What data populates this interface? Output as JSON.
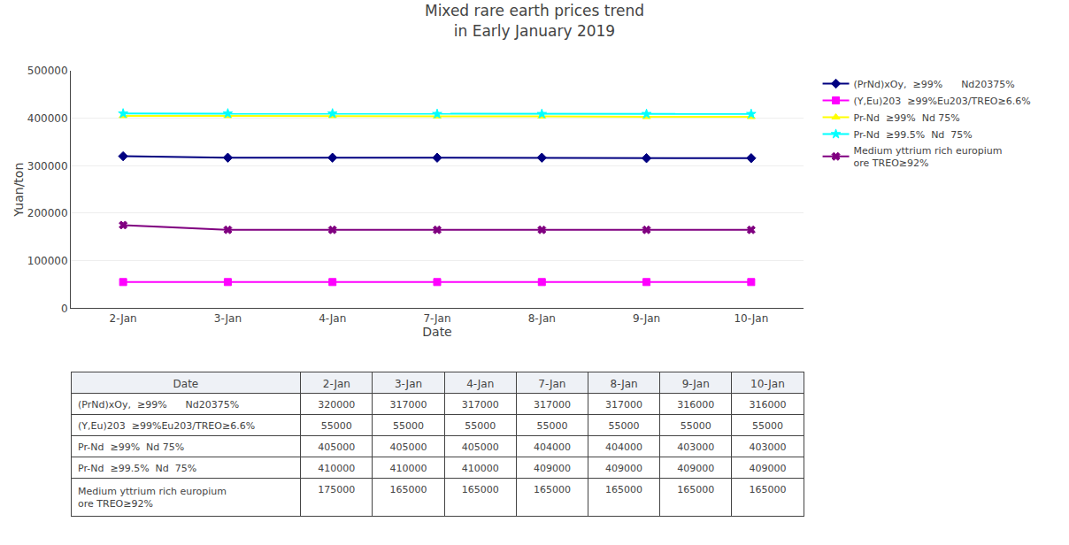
{
  "chart_data": {
    "type": "line",
    "title": "Mixed rare earth prices trend",
    "subtitle": "in Early January 2019",
    "x_label": "Date",
    "y_label": "Yuan/ton",
    "categories": [
      "2-Jan",
      "3-Jan",
      "4-Jan",
      "7-Jan",
      "8-Jan",
      "9-Jan",
      "10-Jan"
    ],
    "series": [
      {
        "name": "(PrNd)xOy,  ≥99%      Nd20375%",
        "color": "#000080",
        "marker": "diamond",
        "line_style": "solid",
        "values": [
          320000,
          317000,
          317000,
          317000,
          317000,
          316000,
          316000
        ]
      },
      {
        "name": "(Y,Eu)203  ≥99%Eu203/TREO≥6.6%",
        "color": "#FF00FF",
        "marker": "square",
        "line_style": "solid",
        "values": [
          55000,
          55000,
          55000,
          55000,
          55000,
          55000,
          55000
        ]
      },
      {
        "name": "Pr-Nd  ≥99%  Nd 75%",
        "color": "#FFFF00",
        "marker": "triangle",
        "line_style": "solid",
        "values": [
          405000,
          405000,
          405000,
          404000,
          404000,
          403000,
          403000
        ]
      },
      {
        "name": "Pr-Nd  ≥99.5%  Nd  75%",
        "color": "#00FFFF",
        "marker": "star",
        "line_style": "solid",
        "values": [
          410000,
          410000,
          410000,
          409000,
          409000,
          409000,
          409000
        ]
      },
      {
        "name": "Medium yttrium rich europium\nore TREO≥92%",
        "color": "#800080",
        "marker": "x",
        "line_style": "solid",
        "values": [
          175000,
          165000,
          165000,
          165000,
          165000,
          165000,
          165000
        ]
      }
    ],
    "ylim": [
      0,
      500000
    ],
    "yticks": [
      0,
      100000,
      200000,
      300000,
      400000,
      500000
    ],
    "grid": true
  }
}
